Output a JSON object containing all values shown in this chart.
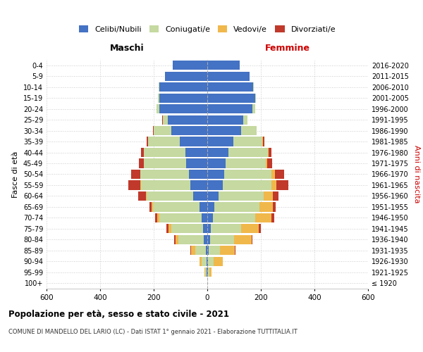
{
  "age_groups": [
    "100+",
    "95-99",
    "90-94",
    "85-89",
    "80-84",
    "75-79",
    "70-74",
    "65-69",
    "60-64",
    "55-59",
    "50-54",
    "45-49",
    "40-44",
    "35-39",
    "30-34",
    "25-29",
    "20-24",
    "15-19",
    "10-14",
    "5-9",
    "0-4"
  ],
  "birth_years": [
    "≤ 1920",
    "1921-1925",
    "1926-1930",
    "1931-1935",
    "1936-1940",
    "1941-1945",
    "1946-1950",
    "1951-1955",
    "1956-1960",
    "1961-1965",
    "1966-1970",
    "1971-1975",
    "1976-1980",
    "1981-1985",
    "1986-1990",
    "1991-1995",
    "1996-2000",
    "2001-2005",
    "2006-2010",
    "2011-2015",
    "2016-2020"
  ],
  "male": {
    "celibi": [
      0,
      2,
      2,
      5,
      12,
      15,
      20,
      28,
      52,
      62,
      68,
      78,
      82,
      102,
      135,
      148,
      178,
      178,
      178,
      158,
      128
    ],
    "coniugati": [
      0,
      5,
      18,
      40,
      95,
      120,
      160,
      175,
      175,
      185,
      182,
      158,
      155,
      118,
      65,
      18,
      12,
      5,
      3,
      0,
      0
    ],
    "vedovi": [
      0,
      4,
      10,
      15,
      12,
      10,
      7,
      4,
      3,
      2,
      0,
      0,
      0,
      0,
      0,
      0,
      0,
      0,
      0,
      0,
      0
    ],
    "divorziati": [
      0,
      0,
      0,
      2,
      4,
      8,
      8,
      10,
      28,
      45,
      35,
      18,
      10,
      6,
      3,
      2,
      0,
      0,
      0,
      0,
      0
    ]
  },
  "female": {
    "nubili": [
      0,
      2,
      3,
      5,
      10,
      13,
      20,
      25,
      42,
      58,
      62,
      68,
      78,
      98,
      125,
      135,
      168,
      178,
      172,
      158,
      122
    ],
    "coniugate": [
      0,
      5,
      20,
      42,
      90,
      112,
      158,
      170,
      168,
      182,
      178,
      150,
      148,
      108,
      58,
      14,
      10,
      4,
      2,
      0,
      0
    ],
    "vedove": [
      0,
      8,
      35,
      55,
      65,
      68,
      62,
      50,
      35,
      18,
      12,
      6,
      4,
      2,
      0,
      0,
      0,
      0,
      0,
      0,
      0
    ],
    "divorziate": [
      0,
      0,
      0,
      2,
      4,
      6,
      10,
      10,
      22,
      45,
      35,
      18,
      10,
      6,
      2,
      2,
      0,
      0,
      0,
      0,
      0
    ]
  },
  "colors": {
    "celibi": "#4472c4",
    "coniugati": "#c5d9a0",
    "vedovi": "#f0b84b",
    "divorziati": "#c0392b"
  },
  "xlim": 600,
  "title": "Popolazione per età, sesso e stato civile - 2021",
  "subtitle": "COMUNE DI MANDELLO DEL LARIO (LC) - Dati ISTAT 1° gennaio 2021 - Elaborazione TUTTITALIA.IT",
  "ylabel": "Fasce di età",
  "ylabel_right": "Anni di nascita",
  "xlabel_left": "Maschi",
  "xlabel_right": "Femmine"
}
